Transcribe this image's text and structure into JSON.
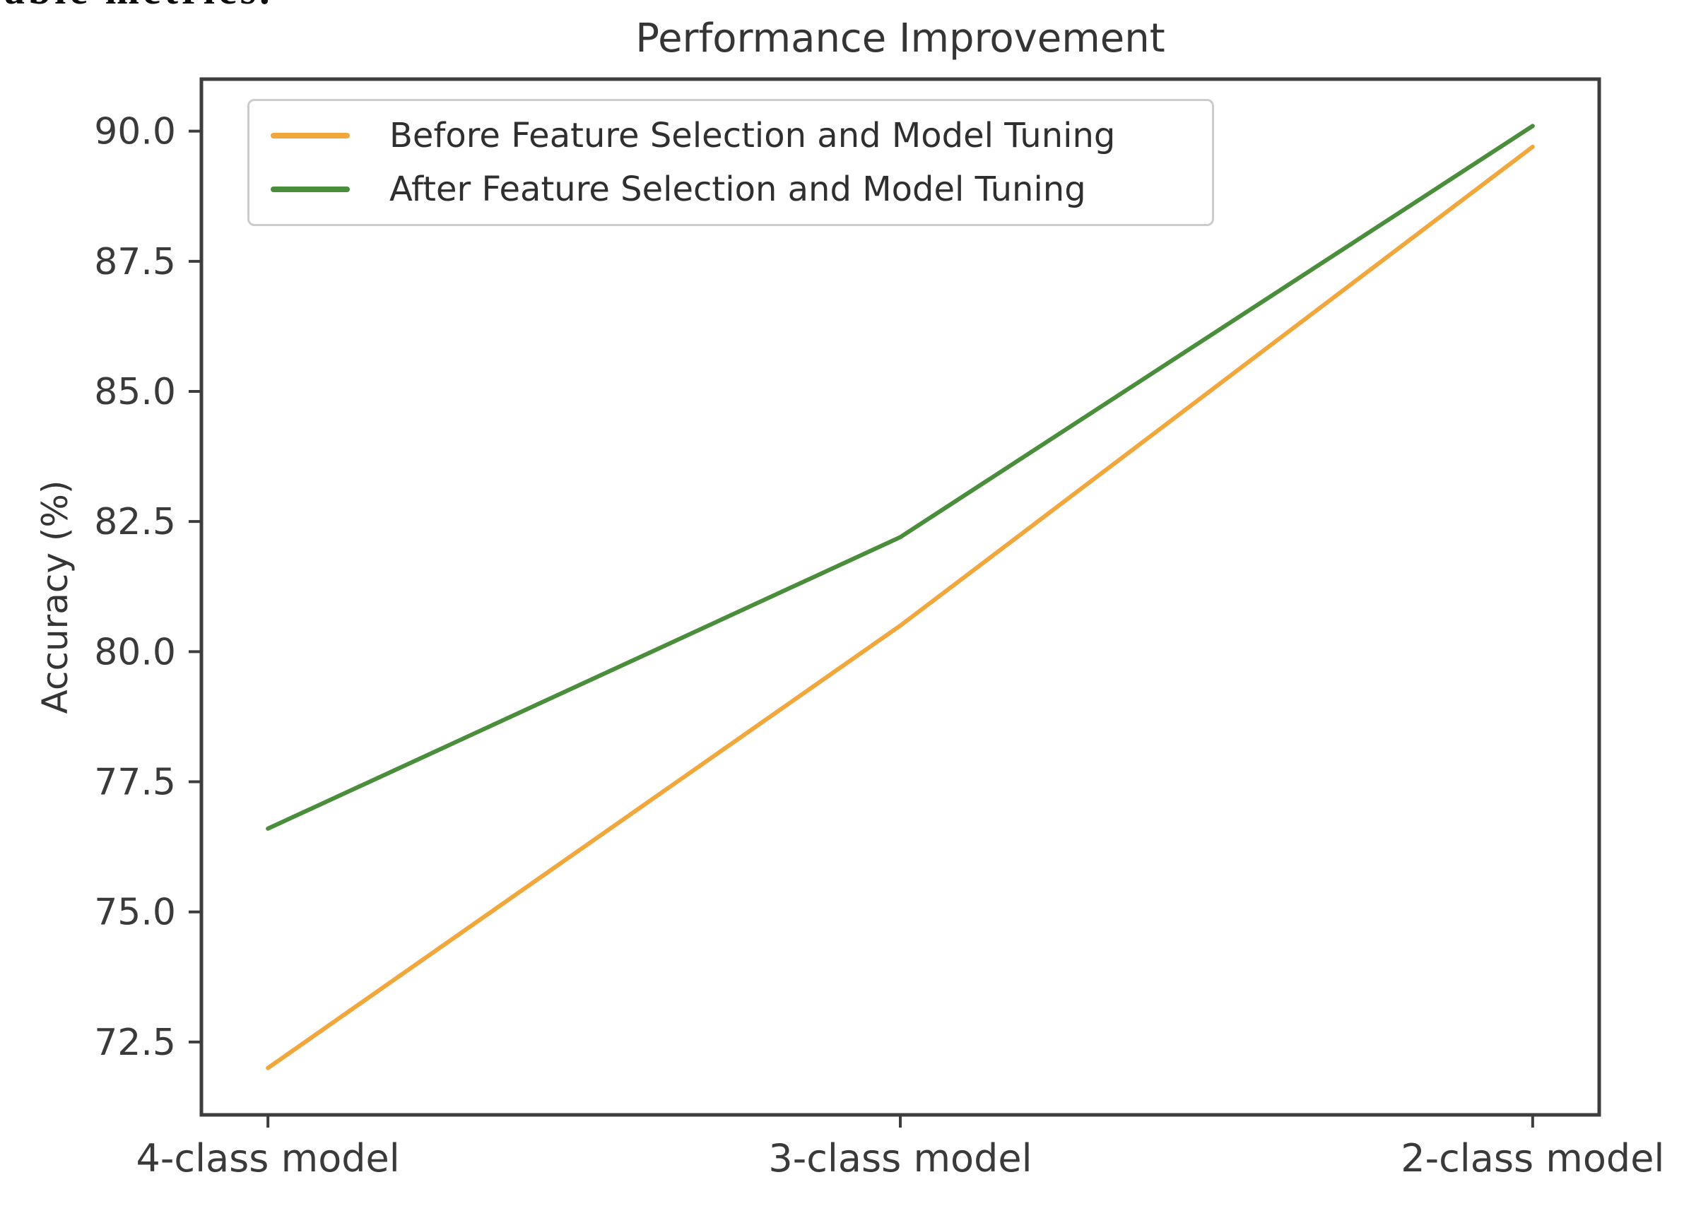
{
  "page": {
    "top_cropped_text": "able metrics."
  },
  "chart_data": {
    "type": "line",
    "title": "Performance Improvement",
    "xlabel": "",
    "ylabel": "Accuracy (%)",
    "categories": [
      "4-class model",
      "3-class model",
      "2-class model"
    ],
    "series": [
      {
        "name": "Before Feature Selection and Model Tuning",
        "color": "#f2a73d",
        "values": [
          72.0,
          80.5,
          89.7
        ]
      },
      {
        "name": "After Feature Selection and Model Tuning",
        "color": "#4a8e3b",
        "values": [
          76.6,
          82.2,
          90.1
        ]
      }
    ],
    "y_ticks": [
      72.5,
      75.0,
      77.5,
      80.0,
      82.5,
      85.0,
      87.5,
      90.0
    ],
    "ylim": [
      71.1,
      91.0
    ],
    "grid": false,
    "legend_position": "upper left"
  }
}
